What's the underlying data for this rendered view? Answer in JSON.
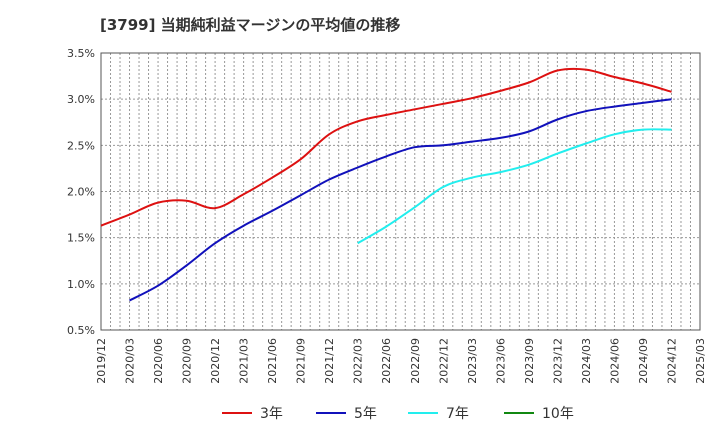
{
  "chart_data": {
    "type": "line",
    "title": "[3799]  当期純利益マージンの平均値の推移",
    "xlabel": "",
    "ylabel": "",
    "ylim": [
      0.5,
      3.5
    ],
    "yticks": [
      "0.5%",
      "1.0%",
      "1.5%",
      "2.0%",
      "2.5%",
      "3.0%",
      "3.5%"
    ],
    "ytick_values": [
      0.5,
      1.0,
      1.5,
      2.0,
      2.5,
      3.0,
      3.5
    ],
    "x_categories": [
      "2019/12",
      "2020/03",
      "2020/06",
      "2020/09",
      "2020/12",
      "2021/03",
      "2021/06",
      "2021/09",
      "2021/12",
      "2022/03",
      "2022/06",
      "2022/09",
      "2022/12",
      "2023/03",
      "2023/06",
      "2023/09",
      "2023/12",
      "2024/03",
      "2024/06",
      "2024/09",
      "2024/12",
      "2025/03"
    ],
    "grid": true,
    "legend_position": "bottom",
    "series": [
      {
        "name": "3年",
        "color": "#dd1111",
        "values": [
          1.63,
          1.75,
          1.88,
          1.9,
          1.82,
          1.97,
          2.15,
          2.35,
          2.62,
          2.76,
          2.83,
          2.89,
          2.95,
          3.01,
          3.09,
          3.18,
          3.31,
          3.32,
          3.24,
          3.17,
          3.08,
          null
        ]
      },
      {
        "name": "5年",
        "color": "#1111bb",
        "values": [
          null,
          0.82,
          0.98,
          1.2,
          1.44,
          1.63,
          1.79,
          1.96,
          2.13,
          2.26,
          2.38,
          2.48,
          2.5,
          2.54,
          2.58,
          2.65,
          2.78,
          2.87,
          2.92,
          2.96,
          3.0,
          null
        ]
      },
      {
        "name": "7年",
        "color": "#22eeee",
        "values": [
          null,
          null,
          null,
          null,
          null,
          null,
          null,
          null,
          null,
          1.44,
          1.62,
          1.83,
          2.05,
          2.15,
          2.21,
          2.29,
          2.41,
          2.52,
          2.62,
          2.67,
          2.67,
          null
        ]
      },
      {
        "name": "10年",
        "color": "#118811",
        "values": [
          null,
          null,
          null,
          null,
          null,
          null,
          null,
          null,
          null,
          null,
          null,
          null,
          null,
          null,
          null,
          null,
          null,
          null,
          null,
          null,
          null,
          null
        ]
      }
    ]
  }
}
